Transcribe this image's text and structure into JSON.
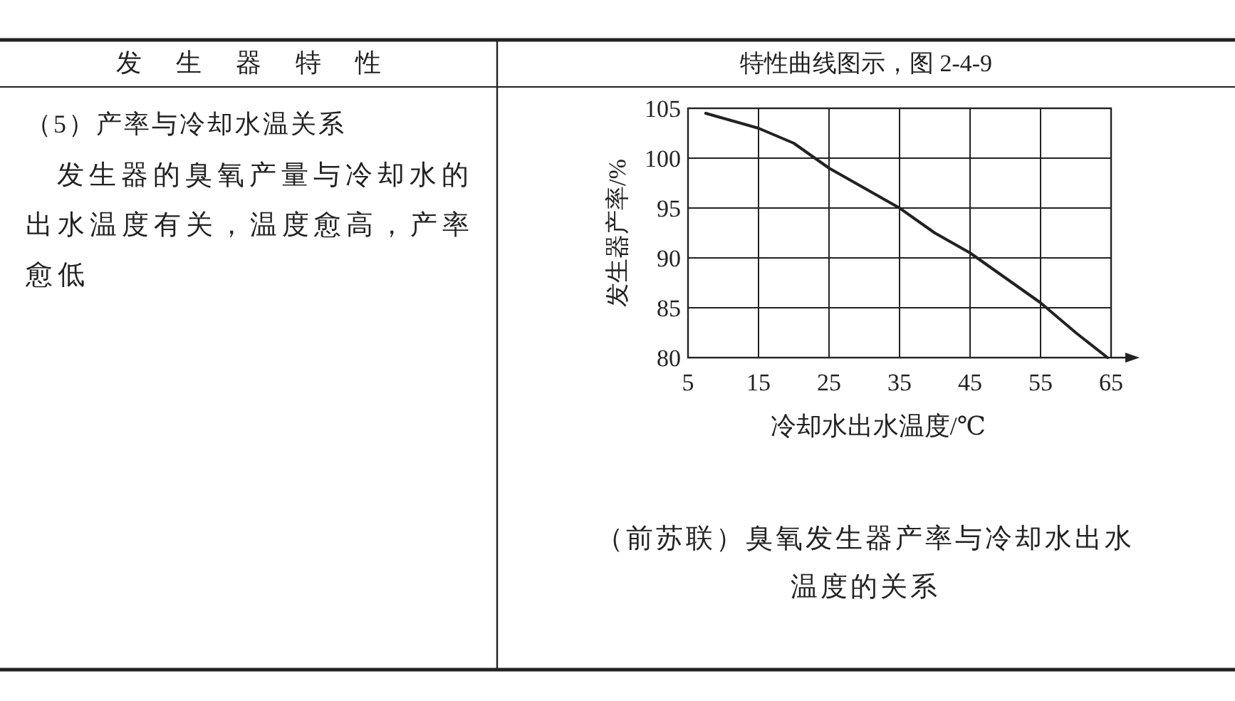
{
  "chart_data": {
    "type": "line",
    "title": "特性曲线图示，图 2-4-9",
    "xlabel": "冷却水出水温度/℃",
    "ylabel": "发生器产率/%",
    "x": [
      7.5,
      10,
      15,
      20,
      25,
      30,
      35,
      40,
      45,
      50,
      55,
      60,
      64.5
    ],
    "values": [
      104.5,
      104,
      103,
      101.5,
      99,
      97,
      95,
      92.5,
      90.5,
      88,
      85.5,
      82.5,
      80
    ],
    "color": "#222222",
    "xlim": [
      5,
      65
    ],
    "ylim": [
      80,
      105
    ],
    "xticks": [
      5,
      15,
      25,
      35,
      45,
      55,
      65
    ],
    "yticks": [
      80,
      85,
      90,
      95,
      100,
      105
    ],
    "grid": true,
    "annotations": [
      "发生器特性",
      "（5）产率与冷却水温关系",
      "发生器的臭氧产量与冷却水的出水温度有关，温度愈高，产率愈低",
      "（前苏联）臭氧发生器产率与冷却水出水温度的关系"
    ]
  }
}
